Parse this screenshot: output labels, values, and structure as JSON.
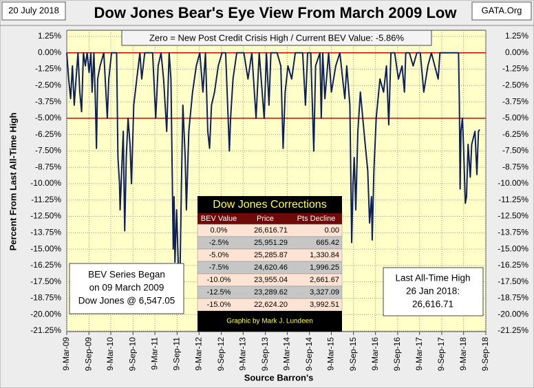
{
  "chart_data": {
    "type": "line",
    "title": "Dow Jones Bear's Eye View From March 2009 Low",
    "date_label": "20 July 2018",
    "source_site": "GATA.Org",
    "subtitle": "Zero = New Post Credit Crisis High / Current BEV Value:  -5.86%",
    "ylabel": "Percent From Last All-Time High",
    "xlabel": "Source Barron's",
    "grid": true,
    "reference_lines": [
      0,
      -5
    ],
    "reference_color": "#e00000",
    "ylim": [
      -21.25,
      1.25
    ],
    "yticks": [
      {
        "value": 1.25,
        "label": "1.25%"
      },
      {
        "value": 0,
        "label": "0.00%"
      },
      {
        "value": -1.25,
        "label": "-1.25%"
      },
      {
        "value": -2.5,
        "label": "-2.50%"
      },
      {
        "value": -3.75,
        "label": "-3.75%"
      },
      {
        "value": -5,
        "label": "-5.00%"
      },
      {
        "value": -6.25,
        "label": "-6.25%"
      },
      {
        "value": -7.5,
        "label": "-7.50%"
      },
      {
        "value": -8.75,
        "label": "-8.75%"
      },
      {
        "value": -10,
        "label": "-10.00%"
      },
      {
        "value": -11.25,
        "label": "-11.25%"
      },
      {
        "value": -12.5,
        "label": "-12.50%"
      },
      {
        "value": -13.75,
        "label": "-13.75%"
      },
      {
        "value": -15,
        "label": "-15.00%"
      },
      {
        "value": -16.25,
        "label": "-16.25%"
      },
      {
        "value": -17.5,
        "label": "-17.50%"
      },
      {
        "value": -18.75,
        "label": "-18.75%"
      },
      {
        "value": -20,
        "label": "-20.00%"
      },
      {
        "value": -21.25,
        "label": "-21.25%"
      }
    ],
    "xlim": [
      "2009-03-09",
      "2018-09-09"
    ],
    "xticks": [
      {
        "value": "2009-03-09",
        "label": "9-Mar-09"
      },
      {
        "value": "2009-09-09",
        "label": "9-Sep-09"
      },
      {
        "value": "2010-03-09",
        "label": "9-Mar-10"
      },
      {
        "value": "2010-09-09",
        "label": "9-Sep-10"
      },
      {
        "value": "2011-03-09",
        "label": "9-Mar-11"
      },
      {
        "value": "2011-09-09",
        "label": "9-Sep-11"
      },
      {
        "value": "2012-03-09",
        "label": "9-Mar-12"
      },
      {
        "value": "2012-09-09",
        "label": "9-Sep-12"
      },
      {
        "value": "2013-03-09",
        "label": "9-Mar-13"
      },
      {
        "value": "2013-09-09",
        "label": "9-Sep-13"
      },
      {
        "value": "2014-03-09",
        "label": "9-Mar-14"
      },
      {
        "value": "2014-09-09",
        "label": "9-Sep-14"
      },
      {
        "value": "2015-03-09",
        "label": "9-Mar-15"
      },
      {
        "value": "2015-09-09",
        "label": "9-Sep-15"
      },
      {
        "value": "2016-03-09",
        "label": "9-Mar-16"
      },
      {
        "value": "2016-09-09",
        "label": "9-Sep-16"
      },
      {
        "value": "2017-03-09",
        "label": "9-Mar-17"
      },
      {
        "value": "2017-09-09",
        "label": "9-Sep-17"
      },
      {
        "value": "2018-03-09",
        "label": "9-Mar-18"
      },
      {
        "value": "2018-09-09",
        "label": "9-Sep-18"
      }
    ],
    "x": [
      "2009-03-09",
      "2009-03-25",
      "2009-04-10",
      "2009-04-25",
      "2009-05-10",
      "2009-05-25",
      "2009-06-10",
      "2009-06-25",
      "2009-07-10",
      "2009-07-25",
      "2009-08-10",
      "2009-08-25",
      "2009-09-10",
      "2009-09-25",
      "2009-10-05",
      "2009-10-20",
      "2009-11-02",
      "2009-11-10",
      "2009-11-20",
      "2009-12-10",
      "2010-01-10",
      "2010-02-08",
      "2010-02-20",
      "2010-03-15",
      "2010-04-26",
      "2010-05-07",
      "2010-05-20",
      "2010-05-25",
      "2010-06-07",
      "2010-06-20",
      "2010-07-02",
      "2010-07-15",
      "2010-07-30",
      "2010-08-15",
      "2010-08-27",
      "2010-09-15",
      "2010-10-10",
      "2010-11-05",
      "2010-11-20",
      "2010-12-15",
      "2011-01-15",
      "2011-02-18",
      "2011-03-16",
      "2011-04-05",
      "2011-04-29",
      "2011-05-20",
      "2011-06-15",
      "2011-07-05",
      "2011-07-20",
      "2011-08-08",
      "2011-08-15",
      "2011-08-22",
      "2011-09-05",
      "2011-09-20",
      "2011-10-03",
      "2011-10-15",
      "2011-10-27",
      "2011-11-15",
      "2011-11-25",
      "2011-12-15",
      "2012-01-15",
      "2012-02-15",
      "2012-03-15",
      "2012-04-10",
      "2012-05-01",
      "2012-05-20",
      "2012-06-04",
      "2012-06-20",
      "2012-07-15",
      "2012-08-15",
      "2012-09-15",
      "2012-10-15",
      "2012-11-15",
      "2012-11-25",
      "2012-12-15",
      "2013-01-15",
      "2013-03-15",
      "2013-04-18",
      "2013-05-20",
      "2013-06-24",
      "2013-07-20",
      "2013-08-30",
      "2013-09-18",
      "2013-10-09",
      "2013-10-25",
      "2013-12-15",
      "2014-01-15",
      "2014-02-03",
      "2014-02-20",
      "2014-03-15",
      "2014-04-15",
      "2014-05-15",
      "2014-07-15",
      "2014-08-07",
      "2014-08-25",
      "2014-09-20",
      "2014-10-15",
      "2014-10-30",
      "2014-12-05",
      "2014-12-16",
      "2014-12-28",
      "2015-01-15",
      "2015-02-15",
      "2015-03-10",
      "2015-04-15",
      "2015-05-19",
      "2015-06-29",
      "2015-07-15",
      "2015-08-10",
      "2015-08-25",
      "2015-09-05",
      "2015-09-15",
      "2015-09-28",
      "2015-10-15",
      "2015-11-05",
      "2015-11-25",
      "2015-12-15",
      "2016-01-05",
      "2016-01-20",
      "2016-02-05",
      "2016-02-11",
      "2016-02-25",
      "2016-03-15",
      "2016-04-15",
      "2016-05-15",
      "2016-06-08",
      "2016-06-27",
      "2016-07-15",
      "2016-08-15",
      "2016-09-15",
      "2016-10-15",
      "2016-11-04",
      "2016-11-15",
      "2016-12-15",
      "2017-01-15",
      "2017-02-15",
      "2017-03-15",
      "2017-04-13",
      "2017-05-17",
      "2017-06-15",
      "2017-08-10",
      "2017-08-25",
      "2017-10-15",
      "2017-12-15",
      "2018-01-26",
      "2018-02-02",
      "2018-02-08",
      "2018-02-15",
      "2018-02-27",
      "2018-03-08",
      "2018-03-23",
      "2018-04-02",
      "2018-04-15",
      "2018-05-03",
      "2018-05-15",
      "2018-06-11",
      "2018-06-27",
      "2018-07-10",
      "2018-07-20"
    ],
    "series": [
      {
        "name": "BEV",
        "color": "#0d1f5c",
        "values": [
          0,
          -2,
          -3.5,
          -1,
          -4,
          -2,
          0,
          -3,
          -4.5,
          0,
          -1,
          0,
          -1.5,
          0,
          -3,
          0,
          -4,
          -7.3,
          -2,
          -1,
          0,
          -5,
          -2,
          0,
          0,
          -8,
          -10,
          -12,
          -9,
          -6,
          -13.6,
          -8,
          -5,
          -7,
          -10,
          -4,
          -2,
          0,
          -2,
          0,
          0,
          0,
          -5,
          -1,
          0,
          -2,
          -6,
          0,
          -2,
          -15,
          -11,
          -16,
          -12,
          -16.5,
          -17,
          -10,
          -4,
          -8,
          -12,
          -6,
          -3,
          -1,
          0,
          -3,
          0,
          -6,
          -7.3,
          -4,
          -3,
          -1,
          0,
          0,
          -7.5,
          -5,
          -2,
          0,
          0,
          -2,
          0,
          -5,
          0,
          -5,
          0,
          -4,
          0,
          0,
          -1,
          -7.3,
          -3,
          -1,
          -2,
          0,
          0,
          -4,
          0,
          0,
          -7.5,
          -1,
          0,
          -5,
          0,
          -3.5,
          0,
          -3,
          -1,
          0,
          -3.5,
          -1,
          -4,
          -14.5,
          -10,
          -8,
          -12,
          -6,
          -3,
          -5,
          -7,
          -9,
          -13,
          -11,
          -14.3,
          -9,
          -5,
          -2,
          -3,
          -1,
          -5.5,
          0,
          0,
          -2,
          -1,
          -3,
          0,
          0,
          -1,
          0,
          0,
          -3,
          -1,
          0,
          -2,
          0,
          0,
          0,
          0,
          -4,
          -10.4,
          -6,
          -5,
          -7,
          -11.5,
          -11,
          -7,
          -9.5,
          -7,
          -6,
          -9.3,
          -6,
          -5.86
        ]
      }
    ],
    "notes": {
      "left": [
        "BEV Series Began",
        "on 09 March 2009",
        "Dow Jones @ 6,547.05"
      ],
      "right": [
        "Last All-Time High",
        "26 Jan 2018:",
        "26,616.71"
      ]
    },
    "table": {
      "title": "Dow Jones Corrections",
      "header": [
        "BEV Value",
        "Price",
        "Pts Decline"
      ],
      "rows": [
        [
          "0.0%",
          "26,616.71",
          "0.00"
        ],
        [
          "-2.5%",
          "25,951.29",
          "665.42"
        ],
        [
          "-5.0%",
          "25,285.87",
          "1,330.84"
        ],
        [
          "-7.5%",
          "24,620.46",
          "1,996.25"
        ],
        [
          "-10.0%",
          "23,955.04",
          "2,661.67"
        ],
        [
          "-12.5%",
          "23,289.62",
          "3,327.09"
        ],
        [
          "-15.0%",
          "22,624.20",
          "3,992.51"
        ]
      ],
      "footer": "Graphic by Mark J. Lundeen"
    }
  }
}
